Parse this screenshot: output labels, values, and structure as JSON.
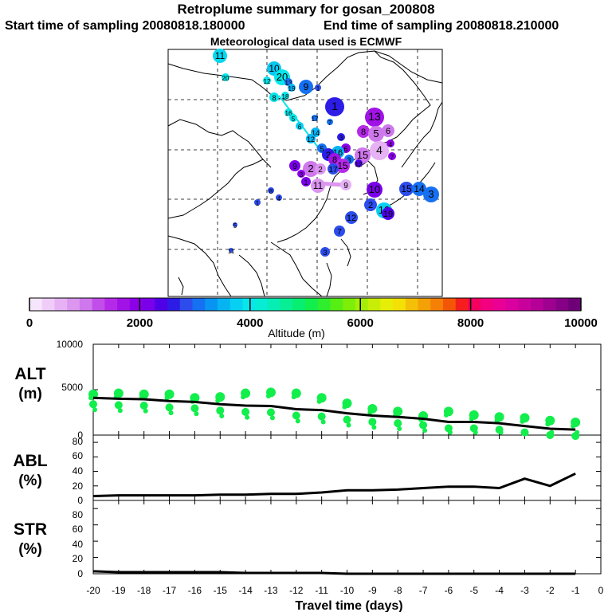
{
  "titles": {
    "line1": "Retroplume summary for gosan_200808",
    "start": "Start time of sampling 20080818.180000",
    "end": "End time of sampling 20080818.210000",
    "met": "Meteorological data used is ECMWF"
  },
  "colorbar": {
    "label": "Altitude (m)",
    "tick_labels": [
      "0",
      "2000",
      "4000",
      "6000",
      "8000",
      "10000"
    ],
    "colors": [
      "#f6e6fc",
      "#efcdf8",
      "#e6b2f4",
      "#dc96f0",
      "#cf77ec",
      "#c24eea",
      "#b52ae8",
      "#a012e6",
      "#8c00e8",
      "#7a00ea",
      "#4f00e6",
      "#2c1ce6",
      "#2c4cec",
      "#1670f2",
      "#0794f2",
      "#07b4f2",
      "#07d0f2",
      "#07e6ea",
      "#07ecd4",
      "#07eeb4",
      "#07ee94",
      "#07ee70",
      "#12ee4c",
      "#2eee2e",
      "#56ee14",
      "#7cee07",
      "#a4ee07",
      "#c8ee07",
      "#e6ee07",
      "#f4e007",
      "#f4c007",
      "#f4a007",
      "#f48007",
      "#f45607",
      "#f41e1e",
      "#f4005e",
      "#f20080",
      "#ea0094",
      "#da00a0",
      "#c8009c",
      "#b40098",
      "#9e0090",
      "#860086",
      "#6e0078"
    ]
  },
  "map_labels": {
    "top": [
      "11",
      "20",
      "10",
      "20",
      "12",
      "13",
      "19",
      "18",
      "9",
      "1",
      "8",
      "1",
      "16",
      "5",
      "7",
      "17",
      "6",
      "13",
      "8",
      "5",
      "6",
      "14",
      "12",
      "3",
      "4",
      "15",
      "4",
      "7",
      "6",
      "16",
      "5",
      "2",
      "8",
      "3",
      "12",
      "15",
      "17",
      "9",
      "2",
      "2",
      "3",
      "1",
      "11",
      "9",
      "10",
      "15",
      "14",
      "3",
      "2",
      "10",
      "19",
      "12",
      "7",
      "3",
      "8",
      "4",
      "1",
      "5",
      "11"
    ]
  },
  "panels": {
    "alt": {
      "line1": "ALT",
      "line2": "(m)",
      "ticks": [
        "10000",
        "5000",
        "0"
      ]
    },
    "abl": {
      "line1": "ABL",
      "line2": "(%)",
      "ticks": [
        "80",
        "60",
        "40",
        "20",
        "0"
      ]
    },
    "str": {
      "line1": "STR",
      "line2": "(%)",
      "ticks": [
        "80",
        "60",
        "40",
        "20",
        "0"
      ]
    }
  },
  "chart_data": [
    {
      "type": "line",
      "title": "ALT (m)",
      "ylabel": "ALT (m)",
      "xlabel": "Travel time (days)",
      "ylim": [
        0,
        10000
      ],
      "x": [
        -20,
        -19,
        -18,
        -17,
        -16,
        -15,
        -14,
        -13,
        -12,
        -11,
        -10,
        -9,
        -8,
        -7,
        -6,
        -5,
        -4,
        -3,
        -2,
        -1
      ],
      "series": [
        {
          "name": "mean altitude",
          "values": [
            4100,
            4000,
            3950,
            3750,
            3650,
            3400,
            3250,
            3200,
            2850,
            2750,
            2400,
            2150,
            2000,
            1800,
            1450,
            1450,
            1300,
            1000,
            700,
            600
          ]
        },
        {
          "name": "cluster points",
          "values": [
            4500,
            4600,
            4500,
            4500,
            4100,
            4200,
            4600,
            4700,
            4600,
            4100,
            3500,
            2900,
            2600,
            2100,
            2600,
            2200,
            2000,
            1900,
            1600,
            1400
          ]
        }
      ]
    },
    {
      "type": "line",
      "title": "ABL (%)",
      "ylabel": "ABL (%)",
      "ylim": [
        0,
        90
      ],
      "x": [
        -20,
        -19,
        -18,
        -17,
        -16,
        -15,
        -14,
        -13,
        -12,
        -11,
        -10,
        -9,
        -8,
        -7,
        -6,
        -5,
        -4,
        -3,
        -2,
        -1
      ],
      "series": [
        {
          "name": "ABL",
          "values": [
            6,
            7,
            7,
            7,
            7,
            8,
            8,
            9,
            9,
            11,
            14,
            14,
            15,
            17,
            19,
            19,
            17,
            30,
            20,
            37
          ]
        }
      ]
    },
    {
      "type": "line",
      "title": "STR (%)",
      "ylabel": "STR (%)",
      "ylim": [
        0,
        90
      ],
      "x": [
        -20,
        -19,
        -18,
        -17,
        -16,
        -15,
        -14,
        -13,
        -12,
        -11,
        -10,
        -9,
        -8,
        -7,
        -6,
        -5,
        -4,
        -3,
        -2,
        -1
      ],
      "series": [
        {
          "name": "STR",
          "values": [
            3,
            2,
            2,
            2,
            2,
            2,
            1,
            1,
            1,
            1,
            0,
            0,
            0,
            0,
            0,
            0,
            0,
            0,
            0,
            0
          ]
        }
      ]
    }
  ],
  "xaxis": {
    "ticks": [
      "-20",
      "-19",
      "-18",
      "-17",
      "-16",
      "-15",
      "-14",
      "-13",
      "-12",
      "-11",
      "-10",
      "-9",
      "-8",
      "-7",
      "-6",
      "-5",
      "-4",
      "-3",
      "-2",
      "-1",
      "0"
    ],
    "label": "Travel time (days)"
  }
}
